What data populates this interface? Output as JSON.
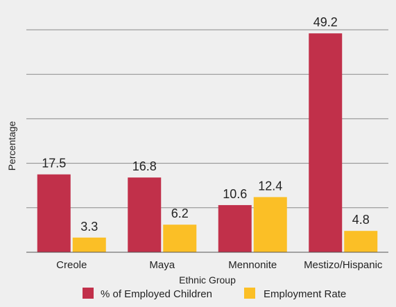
{
  "chart_data": {
    "type": "bar",
    "title": "",
    "xlabel": "Ethnic Group",
    "ylabel": "Percentage",
    "categories": [
      "Creole",
      "Maya",
      "Mennonite",
      "Mestizo/Hispanic"
    ],
    "series": [
      {
        "name": "% of Employed Children",
        "values": [
          17.5,
          16.8,
          10.6,
          49.2
        ],
        "color": "#c1304a"
      },
      {
        "name": "Employment Rate",
        "values": [
          3.3,
          6.2,
          12.4,
          4.8
        ],
        "color": "#fbbf26"
      }
    ],
    "ylim": [
      0,
      50
    ],
    "grid": true,
    "legend_position": "bottom"
  }
}
